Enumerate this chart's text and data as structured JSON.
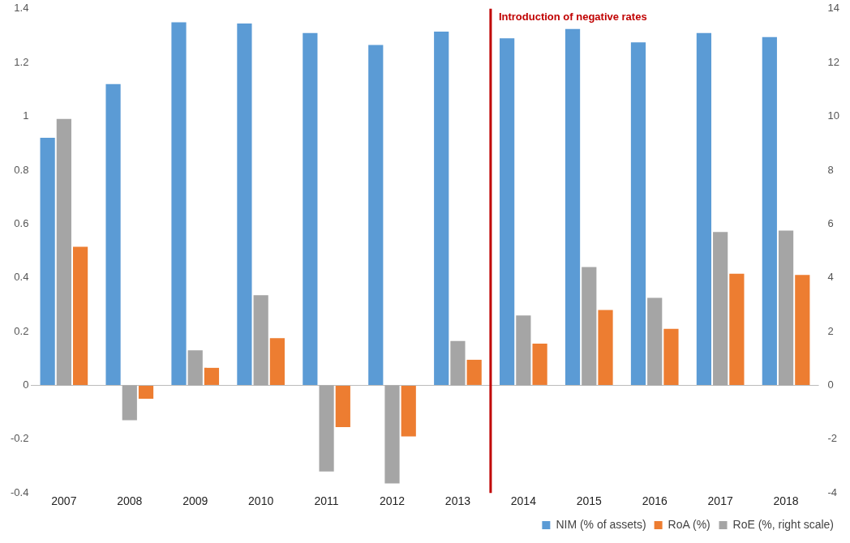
{
  "chart_data": {
    "type": "bar",
    "categories": [
      "2007",
      "2008",
      "2009",
      "2010",
      "2011",
      "2012",
      "2013",
      "2014",
      "2015",
      "2016",
      "2017",
      "2018"
    ],
    "series": [
      {
        "name": "NIM (% of assets)",
        "color": "#5b9bd5",
        "values": [
          0.92,
          1.12,
          1.35,
          1.345,
          1.31,
          1.265,
          1.315,
          1.29,
          1.325,
          1.275,
          1.31,
          1.295
        ]
      },
      {
        "name": "RoE (%, right scale)",
        "color": "#a5a5a5",
        "axis": "y2",
        "values": [
          9.9,
          -1.3,
          1.3,
          3.35,
          -3.2,
          -3.65,
          1.65,
          2.6,
          4.4,
          3.25,
          5.7,
          5.75
        ]
      },
      {
        "name": "RoA (%)",
        "color": "#ed7d31",
        "values": [
          0.515,
          -0.05,
          0.065,
          0.175,
          -0.155,
          -0.19,
          0.095,
          0.155,
          0.28,
          0.21,
          0.415,
          0.41
        ]
      }
    ],
    "ylim": [
      -0.4,
      1.4
    ],
    "yticks": [
      -0.4,
      -0.2,
      0,
      0.2,
      0.4,
      0.6,
      0.8,
      1,
      1.2,
      1.4
    ],
    "y2lim": [
      -4,
      14
    ],
    "y2ticks": [
      -4,
      -2,
      0,
      2,
      4,
      6,
      8,
      10,
      12,
      14
    ],
    "ref_lines": [
      {
        "axis": "x",
        "value": "2014",
        "label": "Introduction of negative rates",
        "color": "#c00000"
      }
    ],
    "legend": "bottom right",
    "grid": false
  }
}
